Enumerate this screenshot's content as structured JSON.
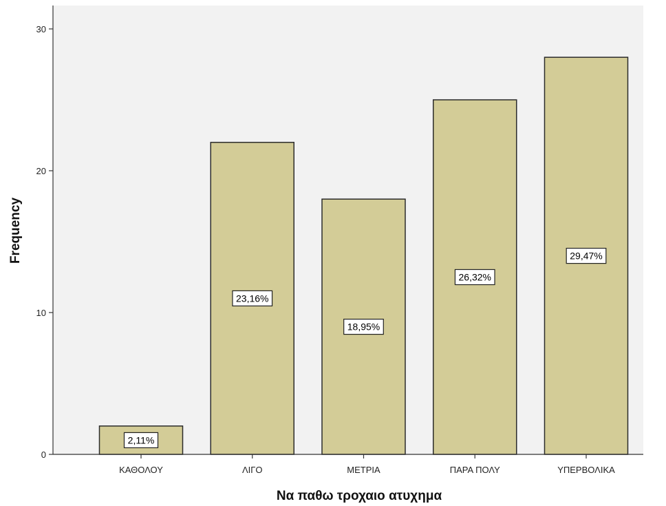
{
  "chart_data": {
    "type": "bar",
    "title": "",
    "xlabel": "Να παθω τροχαιο ατυχημα",
    "ylabel": "Frequency",
    "categories": [
      "ΚΑΘΟΛΟΥ",
      "ΛΙΓΟ",
      "ΜΕΤΡΙΑ",
      "ΠΑΡΑ ΠΟΛΥ",
      "ΥΠΕΡΒΟΛΙΚΑ"
    ],
    "values": [
      2,
      22,
      18,
      25,
      28
    ],
    "data_labels": [
      "2,11%",
      "23,16%",
      "18,95%",
      "26,32%",
      "29,47%"
    ],
    "ylim": [
      0,
      30
    ],
    "yticks": [
      "0",
      "10",
      "20",
      "30"
    ],
    "grid": false,
    "legend": "none",
    "colors": {
      "bar_fill": "#d3cc97",
      "bar_stroke": "#2b2b2b",
      "plot_background": "#f2f2f2",
      "label_box_fill": "#ffffff"
    }
  }
}
